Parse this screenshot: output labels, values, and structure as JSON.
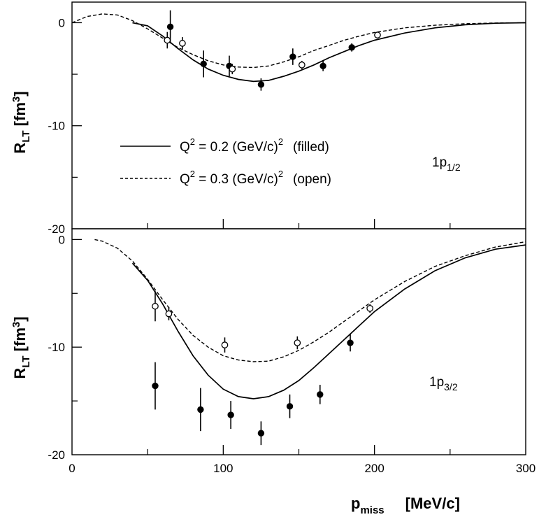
{
  "chart_data": [
    {
      "type": "scatter",
      "panel": "top",
      "label_main": "1p",
      "label_sub": "1/2",
      "ylabel_main": "R",
      "ylabel_sub": "LT",
      "ylabel_unit_base": "[fm",
      "ylabel_unit_sup": "3",
      "ylabel_unit_close": "]",
      "xlim": [
        0,
        300
      ],
      "ylim": [
        -20,
        2
      ],
      "yticks": [
        0,
        -10,
        -20
      ],
      "yticks_major": [
        0,
        -10
      ],
      "yticks_minor": [
        -5,
        -15
      ],
      "ytick_labels": [
        "0",
        "-10",
        "-20"
      ],
      "legend": [
        {
          "style": "solid",
          "prefix": "Q",
          "sup": "2",
          "middle": " = 0.2 (GeV/c)",
          "sup2": "2",
          "suffix": "(filled)"
        },
        {
          "style": "dashed",
          "prefix": "Q",
          "sup": "2",
          "middle": " = 0.3 (GeV/c)",
          "sup2": "2",
          "suffix": "(open)"
        }
      ],
      "series": [
        {
          "name": "Q2 = 0.2 (GeV/c)2 calculation",
          "kind": "line",
          "style": "solid",
          "x": [
            40,
            50,
            60,
            70,
            80,
            90,
            100,
            110,
            120,
            130,
            140,
            150,
            160,
            170,
            180,
            190,
            200,
            220,
            240,
            260,
            280,
            300
          ],
          "y": [
            0,
            -0.3,
            -1.3,
            -2.5,
            -3.6,
            -4.5,
            -5.1,
            -5.5,
            -5.7,
            -5.6,
            -5.2,
            -4.7,
            -4.1,
            -3.4,
            -2.8,
            -2.2,
            -1.7,
            -1.0,
            -0.5,
            -0.2,
            -0.05,
            0
          ]
        },
        {
          "name": "Q2 = 0.3 (GeV/c)2 calculation",
          "kind": "line",
          "style": "dashed",
          "x": [
            0,
            10,
            20,
            30,
            40,
            50,
            60,
            70,
            80,
            90,
            100,
            110,
            120,
            130,
            140,
            150,
            160,
            170,
            180,
            190,
            200,
            220,
            240,
            260,
            280,
            300
          ],
          "y": [
            0,
            0.6,
            0.85,
            0.75,
            0.2,
            -0.6,
            -1.5,
            -2.4,
            -3.1,
            -3.7,
            -4.1,
            -4.3,
            -4.35,
            -4.2,
            -3.8,
            -3.3,
            -2.7,
            -2.2,
            -1.7,
            -1.3,
            -0.95,
            -0.5,
            -0.25,
            -0.1,
            -0.03,
            0
          ]
        },
        {
          "name": "filled",
          "kind": "points",
          "marker": "filled",
          "points": [
            {
              "x": 65,
              "y": -0.4,
              "err": 1.6
            },
            {
              "x": 87,
              "y": -4.0,
              "err": 1.3
            },
            {
              "x": 104,
              "y": -4.2,
              "err": 1.0
            },
            {
              "x": 125,
              "y": -6.0,
              "err": 0.6
            },
            {
              "x": 146,
              "y": -3.3,
              "err": 0.8
            },
            {
              "x": 166,
              "y": -4.2,
              "err": 0.5
            },
            {
              "x": 185,
              "y": -2.4,
              "err": 0.4
            }
          ]
        },
        {
          "name": "open",
          "kind": "points",
          "marker": "open",
          "points": [
            {
              "x": 63,
              "y": -1.7,
              "err": 0.8
            },
            {
              "x": 73,
              "y": -2.0,
              "err": 0.6
            },
            {
              "x": 106,
              "y": -4.5,
              "err": 0.5
            },
            {
              "x": 152,
              "y": -4.1,
              "err": 0.4
            },
            {
              "x": 202,
              "y": -1.2,
              "err": 0.3
            }
          ]
        }
      ]
    },
    {
      "type": "scatter",
      "panel": "bottom",
      "label_main": "1p",
      "label_sub": "3/2",
      "ylabel_main": "R",
      "ylabel_sub": "LT",
      "ylabel_unit_base": "[fm",
      "ylabel_unit_sup": "3",
      "ylabel_unit_close": "]",
      "xlim": [
        0,
        300
      ],
      "ylim": [
        -20,
        1
      ],
      "yticks": [
        0,
        -10,
        -20
      ],
      "yticks_major": [
        0,
        -10
      ],
      "yticks_minor": [
        -5,
        -15
      ],
      "ytick_labels": [
        "0",
        "-10",
        "-20"
      ],
      "xticks": [
        0,
        100,
        200,
        300
      ],
      "xticks_minor": [
        50,
        150,
        250
      ],
      "xtick_labels": [
        "0",
        "100",
        "200",
        "300"
      ],
      "xlabel_main": "p",
      "xlabel_sub": "miss",
      "xlabel_unit": "[MeV/c]",
      "series": [
        {
          "name": "Q2 = 0.2 (GeV/c)2 calculation",
          "kind": "line",
          "style": "solid",
          "x": [
            40,
            50,
            60,
            70,
            80,
            90,
            100,
            110,
            120,
            130,
            140,
            150,
            160,
            170,
            180,
            190,
            200,
            220,
            240,
            260,
            280,
            300
          ],
          "y": [
            -2.2,
            -3.8,
            -6.0,
            -8.5,
            -10.8,
            -12.6,
            -13.9,
            -14.6,
            -14.8,
            -14.6,
            -14.0,
            -13.1,
            -11.9,
            -10.6,
            -9.3,
            -8.0,
            -6.7,
            -4.6,
            -2.9,
            -1.7,
            -0.9,
            -0.5
          ]
        },
        {
          "name": "Q2 = 0.3 (GeV/c)2 calculation",
          "kind": "line",
          "style": "dashed",
          "x": [
            15,
            20,
            30,
            40,
            50,
            60,
            70,
            80,
            90,
            100,
            110,
            120,
            130,
            140,
            150,
            160,
            170,
            180,
            190,
            200,
            220,
            240,
            260,
            280,
            300
          ],
          "y": [
            0,
            -0.15,
            -0.8,
            -2.0,
            -3.7,
            -5.6,
            -7.4,
            -8.9,
            -10.0,
            -10.8,
            -11.2,
            -11.35,
            -11.3,
            -10.9,
            -10.3,
            -9.5,
            -8.6,
            -7.6,
            -6.6,
            -5.6,
            -3.9,
            -2.5,
            -1.5,
            -0.7,
            -0.2
          ]
        },
        {
          "name": "filled",
          "kind": "points",
          "marker": "filled",
          "points": [
            {
              "x": 55,
              "y": -13.6,
              "err": 2.2
            },
            {
              "x": 85,
              "y": -15.8,
              "err": 2.0
            },
            {
              "x": 105,
              "y": -16.3,
              "err": 1.3
            },
            {
              "x": 125,
              "y": -18.0,
              "err": 1.1
            },
            {
              "x": 144,
              "y": -15.5,
              "err": 1.1
            },
            {
              "x": 164,
              "y": -14.4,
              "err": 0.9
            },
            {
              "x": 184,
              "y": -9.6,
              "err": 0.8
            }
          ]
        },
        {
          "name": "open",
          "kind": "points",
          "marker": "open",
          "points": [
            {
              "x": 55,
              "y": -6.2,
              "err": 1.4
            },
            {
              "x": 64,
              "y": -6.9,
              "err": 0.6
            },
            {
              "x": 101,
              "y": -9.8,
              "err": 0.7
            },
            {
              "x": 149,
              "y": -9.6,
              "err": 0.6
            },
            {
              "x": 197,
              "y": -6.4,
              "err": 0.4
            }
          ]
        }
      ]
    }
  ]
}
